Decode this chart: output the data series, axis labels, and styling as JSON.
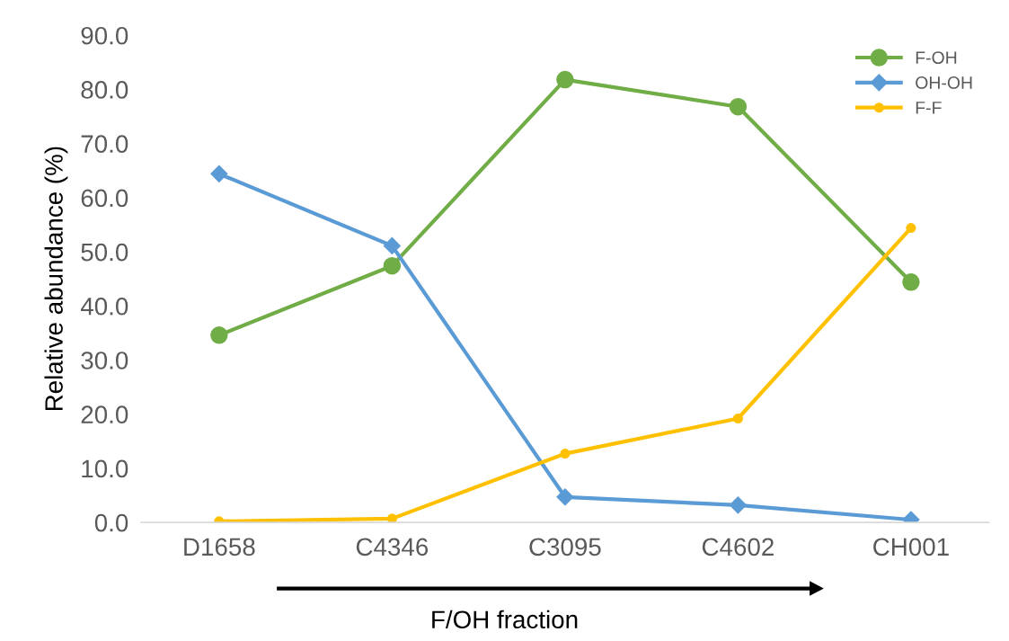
{
  "chart_data": {
    "type": "line",
    "ylabel": "Relative abundance (%)",
    "xlabel": "F/OH fraction",
    "categories": [
      "D1658",
      "C4346",
      "C3095",
      "C4602",
      "CH001"
    ],
    "series": [
      {
        "name": "F-OH",
        "color": "#70ad47",
        "marker": "circle",
        "values": [
          34.6,
          47.4,
          81.8,
          76.8,
          44.4
        ]
      },
      {
        "name": "OH-OH",
        "color": "#5b9bd5",
        "marker": "diamond",
        "values": [
          64.4,
          51.1,
          4.7,
          3.2,
          0.5
        ]
      },
      {
        "name": "F-F",
        "color": "#ffc000",
        "marker": "circle",
        "values": [
          0.2,
          0.7,
          12.7,
          19.2,
          54.4
        ]
      }
    ],
    "ylim": [
      0,
      90
    ],
    "yticks": [
      {
        "value": 0,
        "label": "0.0"
      },
      {
        "value": 10,
        "label": "10.0"
      },
      {
        "value": 20,
        "label": "20.0"
      },
      {
        "value": 30,
        "label": "30.0"
      },
      {
        "value": 40,
        "label": "40.0"
      },
      {
        "value": 50,
        "label": "50.0"
      },
      {
        "value": 60,
        "label": "60.0"
      },
      {
        "value": 70,
        "label": "70.0"
      },
      {
        "value": 80,
        "label": "80.0"
      },
      {
        "value": 90,
        "label": "90.0"
      }
    ],
    "grid": false,
    "legend": "top right",
    "line_style": "solid"
  }
}
